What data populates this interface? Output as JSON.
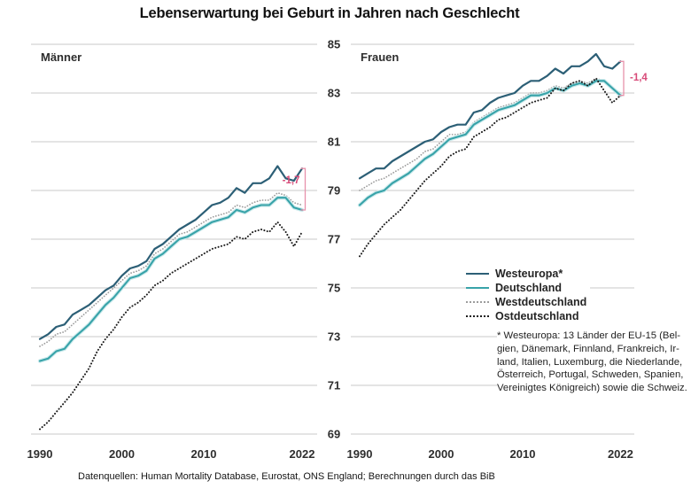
{
  "title": "Lebenserwartung bei Geburt in Jahren nach Geschlecht",
  "source": "Datenquellen: Human Mortality Database, Eurostat, ONS England; Berechnungen durch das BiB",
  "colors": {
    "westeuropa": "#2c5f76",
    "deutschland": "#38a3a9",
    "deutschland_halo": "#cceaec",
    "westdeutschland": "#9c9c9c",
    "ostdeutschland": "#1d1d1d",
    "annotation": "#d84b79",
    "annotation_line": "#e792ab",
    "gridline": "#c9c9c9",
    "tick_text": "#2e2e2e"
  },
  "chart_data": {
    "type": "line",
    "x": [
      1990,
      1991,
      1992,
      1993,
      1994,
      1995,
      1996,
      1997,
      1998,
      1999,
      2000,
      2001,
      2002,
      2003,
      2004,
      2005,
      2006,
      2007,
      2008,
      2009,
      2010,
      2011,
      2012,
      2013,
      2014,
      2015,
      2016,
      2017,
      2018,
      2019,
      2020,
      2021,
      2022
    ],
    "x_ticks": [
      1990,
      2000,
      2010,
      2022
    ],
    "y_ticks": [
      69,
      71,
      73,
      75,
      77,
      79,
      81,
      83,
      85
    ],
    "ylim": [
      69,
      85
    ],
    "grid": "horizontal-only",
    "legend_position": "right-middle",
    "legend": [
      {
        "key": "westeuropa",
        "label": "Westeuropa*",
        "style": "solid"
      },
      {
        "key": "deutschland",
        "label": "Deutschland",
        "style": "solid"
      },
      {
        "key": "westdeutschland",
        "label": "Westdeutschland",
        "style": "dotted"
      },
      {
        "key": "ostdeutschland",
        "label": "Ostdeutschland",
        "style": "dotted"
      }
    ],
    "panels": [
      {
        "label": "Männer",
        "annotation": {
          "label": "-1,7"
        },
        "series": [
          {
            "key": "westeuropa",
            "name": "Westeuropa*",
            "values": [
              72.9,
              73.1,
              73.4,
              73.5,
              73.9,
              74.1,
              74.3,
              74.6,
              74.9,
              75.1,
              75.5,
              75.8,
              75.9,
              76.1,
              76.6,
              76.8,
              77.1,
              77.4,
              77.6,
              77.8,
              78.1,
              78.4,
              78.5,
              78.7,
              79.1,
              78.9,
              79.3,
              79.3,
              79.5,
              80.0,
              79.5,
              79.4,
              79.9
            ]
          },
          {
            "key": "deutschland",
            "name": "Deutschland",
            "values": [
              72.0,
              72.1,
              72.4,
              72.5,
              72.9,
              73.2,
              73.5,
              73.9,
              74.3,
              74.6,
              75.0,
              75.4,
              75.5,
              75.7,
              76.2,
              76.4,
              76.7,
              77.0,
              77.1,
              77.3,
              77.5,
              77.7,
              77.8,
              77.9,
              78.2,
              78.1,
              78.3,
              78.4,
              78.4,
              78.7,
              78.7,
              78.3,
              78.2
            ]
          },
          {
            "key": "westdeutschland",
            "name": "Westdeutschland",
            "values": [
              72.6,
              72.8,
              73.1,
              73.2,
              73.5,
              73.8,
              74.1,
              74.4,
              74.7,
              75.0,
              75.3,
              75.6,
              75.7,
              75.9,
              76.4,
              76.6,
              76.9,
              77.2,
              77.3,
              77.5,
              77.7,
              77.9,
              78.0,
              78.1,
              78.4,
              78.3,
              78.5,
              78.6,
              78.6,
              78.9,
              78.8,
              78.5,
              78.4
            ]
          },
          {
            "key": "ostdeutschland",
            "name": "Ostdeutschland",
            "values": [
              69.2,
              69.5,
              69.9,
              70.3,
              70.7,
              71.2,
              71.7,
              72.4,
              72.9,
              73.3,
              73.8,
              74.2,
              74.4,
              74.7,
              75.1,
              75.3,
              75.6,
              75.8,
              76.0,
              76.2,
              76.4,
              76.6,
              76.7,
              76.8,
              77.1,
              77.0,
              77.3,
              77.4,
              77.3,
              77.7,
              77.3,
              76.7,
              77.3
            ]
          }
        ]
      },
      {
        "label": "Frauen",
        "annotation": {
          "label": "-1,4"
        },
        "series": [
          {
            "key": "westeuropa",
            "name": "Westeuropa*",
            "values": [
              79.5,
              79.7,
              79.9,
              79.9,
              80.2,
              80.4,
              80.6,
              80.8,
              81.0,
              81.1,
              81.4,
              81.6,
              81.7,
              81.7,
              82.2,
              82.3,
              82.6,
              82.8,
              82.9,
              83.0,
              83.3,
              83.5,
              83.5,
              83.7,
              84.0,
              83.8,
              84.1,
              84.1,
              84.3,
              84.6,
              84.1,
              84.0,
              84.3
            ]
          },
          {
            "key": "deutschland",
            "name": "Deutschland",
            "values": [
              78.4,
              78.7,
              78.9,
              79.0,
              79.3,
              79.5,
              79.7,
              80.0,
              80.3,
              80.5,
              80.8,
              81.1,
              81.2,
              81.3,
              81.7,
              81.9,
              82.1,
              82.3,
              82.4,
              82.5,
              82.7,
              82.9,
              82.9,
              83.0,
              83.2,
              83.1,
              83.3,
              83.4,
              83.3,
              83.5,
              83.5,
              83.2,
              82.9
            ]
          },
          {
            "key": "westdeutschland",
            "name": "Westdeutschland",
            "values": [
              79.0,
              79.2,
              79.4,
              79.5,
              79.7,
              79.9,
              80.1,
              80.3,
              80.6,
              80.7,
              81.0,
              81.3,
              81.3,
              81.4,
              81.8,
              82.0,
              82.2,
              82.4,
              82.5,
              82.6,
              82.8,
              83.0,
              83.0,
              83.1,
              83.3,
              83.2,
              83.4,
              83.5,
              83.4,
              83.6,
              83.5,
              83.2,
              83.0
            ]
          },
          {
            "key": "ostdeutschland",
            "name": "Ostdeutschland",
            "values": [
              76.3,
              76.8,
              77.2,
              77.6,
              77.9,
              78.2,
              78.6,
              79.0,
              79.4,
              79.7,
              80.0,
              80.4,
              80.6,
              80.7,
              81.2,
              81.4,
              81.6,
              81.9,
              82.0,
              82.2,
              82.4,
              82.6,
              82.7,
              82.8,
              83.2,
              83.1,
              83.4,
              83.5,
              83.3,
              83.6,
              83.1,
              82.6,
              82.9
            ]
          }
        ]
      }
    ],
    "footnote_lines": [
      "* Westeuropa: 13 Länder der EU-15 (Bel-",
      "gien, Dänemark, Finnland, Frankreich, Ir-",
      "land, Italien, Luxemburg, die Niederlande,",
      "Österreich, Portugal, Schweden, Spanien,",
      "Vereinigtes Königreich) sowie die Schweiz."
    ]
  }
}
